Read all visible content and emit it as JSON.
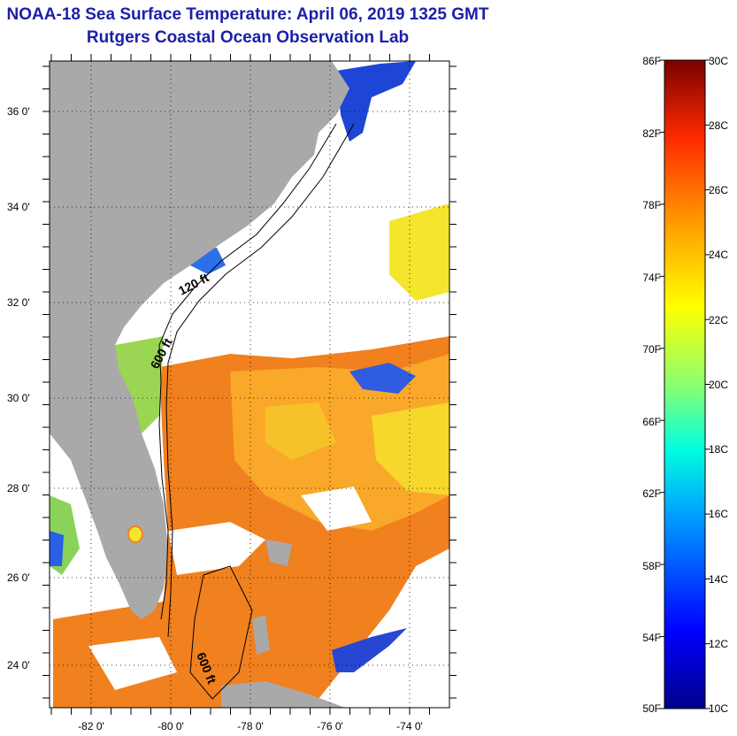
{
  "title": {
    "line1": "NOAA-18 Sea Surface Temperature:  April 06, 2019 1325 GMT",
    "line2": "Rutgers Coastal Ocean Observation Lab"
  },
  "map": {
    "lat_ticks": [
      "36 0'",
      "34 0'",
      "32 0'",
      "30 0'",
      "28 0'",
      "26 0'",
      "24 0'"
    ],
    "lon_ticks": [
      "-82 0'",
      "-80 0'",
      "-78 0'",
      "-76 0'",
      "-74 0'"
    ],
    "contour_labels": [
      "120 ft",
      "600 ft",
      "600 ft"
    ],
    "colors": {
      "land": "#a9a9a9",
      "cloud": "#ffffff",
      "frame": "#000000"
    }
  },
  "colorbar": {
    "fahrenheit_labels": [
      "86F",
      "82F",
      "78F",
      "74F",
      "70F",
      "66F",
      "62F",
      "58F",
      "54F",
      "50F"
    ],
    "celsius_labels": [
      "30C",
      "28C",
      "26C",
      "24C",
      "22C",
      "20C",
      "18C",
      "16C",
      "14C",
      "12C",
      "10C"
    ],
    "range_c": [
      10,
      30
    ],
    "range_f": [
      50,
      86
    ]
  }
}
